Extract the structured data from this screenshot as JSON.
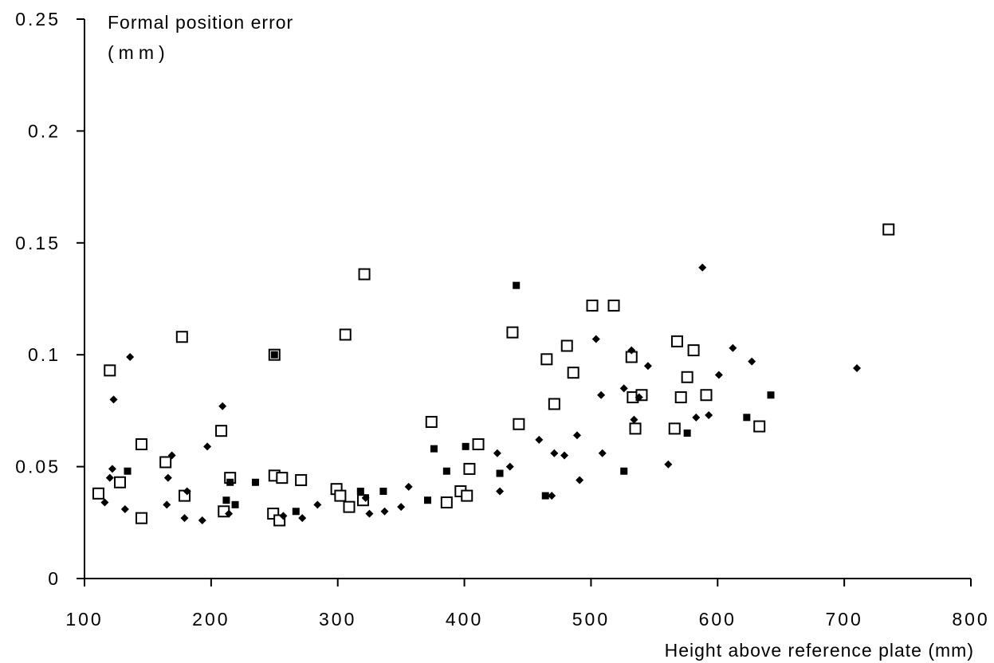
{
  "chart_data": {
    "type": "scatter",
    "title": "",
    "xlabel": "Height above reference plate (mm)",
    "ylabel_lines": [
      "Formal position error",
      "(mm)"
    ],
    "xlim": [
      100,
      800
    ],
    "ylim": [
      0,
      0.25
    ],
    "x_ticks": [
      100,
      200,
      300,
      400,
      500,
      600,
      700,
      800
    ],
    "x_tick_labels": [
      "100",
      "200",
      "300",
      "400",
      "500",
      "600",
      "700",
      "800"
    ],
    "y_ticks": [
      0,
      0.05,
      0.1,
      0.15,
      0.2,
      0.25
    ],
    "y_tick_labels": [
      "0",
      "0.05",
      "0.1",
      "0.15",
      "0.2",
      "0.25"
    ],
    "grid": false,
    "legend": "none",
    "colors": {
      "marker": "#000000",
      "background": "#ffffff"
    },
    "series": [
      {
        "marker": "open-square",
        "points": [
          [
            111,
            0.038
          ],
          [
            120,
            0.093
          ],
          [
            128,
            0.043
          ],
          [
            145,
            0.027
          ],
          [
            145,
            0.06
          ],
          [
            164,
            0.052
          ],
          [
            177,
            0.108
          ],
          [
            179,
            0.037
          ],
          [
            208,
            0.066
          ],
          [
            210,
            0.03
          ],
          [
            215,
            0.045
          ],
          [
            249,
            0.029
          ],
          [
            250,
            0.1
          ],
          [
            250,
            0.046
          ],
          [
            254,
            0.026
          ],
          [
            256,
            0.045
          ],
          [
            271,
            0.044
          ],
          [
            299,
            0.04
          ],
          [
            302,
            0.037
          ],
          [
            306,
            0.109
          ],
          [
            309,
            0.032
          ],
          [
            320,
            0.035
          ],
          [
            321,
            0.136
          ],
          [
            374,
            0.07
          ],
          [
            386,
            0.034
          ],
          [
            397,
            0.039
          ],
          [
            402,
            0.037
          ],
          [
            404,
            0.049
          ],
          [
            411,
            0.06
          ],
          [
            438,
            0.11
          ],
          [
            443,
            0.069
          ],
          [
            465,
            0.098
          ],
          [
            471,
            0.078
          ],
          [
            481,
            0.104
          ],
          [
            486,
            0.092
          ],
          [
            501,
            0.122
          ],
          [
            518,
            0.122
          ],
          [
            532,
            0.099
          ],
          [
            533,
            0.081
          ],
          [
            535,
            0.067
          ],
          [
            540,
            0.082
          ],
          [
            566,
            0.067
          ],
          [
            568,
            0.106
          ],
          [
            571,
            0.081
          ],
          [
            576,
            0.09
          ],
          [
            581,
            0.102
          ],
          [
            591,
            0.082
          ],
          [
            633,
            0.068
          ],
          [
            735,
            0.156
          ]
        ]
      },
      {
        "marker": "filled-square",
        "points": [
          [
            134,
            0.048
          ],
          [
            212,
            0.035
          ],
          [
            215,
            0.043
          ],
          [
            219,
            0.033
          ],
          [
            235,
            0.043
          ],
          [
            250,
            0.1
          ],
          [
            267,
            0.03
          ],
          [
            318,
            0.039
          ],
          [
            336,
            0.039
          ],
          [
            371,
            0.035
          ],
          [
            376,
            0.058
          ],
          [
            386,
            0.048
          ],
          [
            401,
            0.059
          ],
          [
            428,
            0.047
          ],
          [
            441,
            0.131
          ],
          [
            464,
            0.037
          ],
          [
            526,
            0.048
          ],
          [
            576,
            0.065
          ],
          [
            623,
            0.072
          ],
          [
            642,
            0.082
          ]
        ]
      },
      {
        "marker": "filled-diamond",
        "points": [
          [
            116,
            0.034
          ],
          [
            120,
            0.045
          ],
          [
            122,
            0.049
          ],
          [
            123,
            0.08
          ],
          [
            132,
            0.031
          ],
          [
            136,
            0.099
          ],
          [
            165,
            0.033
          ],
          [
            166,
            0.045
          ],
          [
            169,
            0.055
          ],
          [
            179,
            0.027
          ],
          [
            181,
            0.039
          ],
          [
            193,
            0.026
          ],
          [
            197,
            0.059
          ],
          [
            209,
            0.077
          ],
          [
            214,
            0.029
          ],
          [
            257,
            0.028
          ],
          [
            272,
            0.027
          ],
          [
            284,
            0.033
          ],
          [
            322,
            0.036
          ],
          [
            325,
            0.029
          ],
          [
            337,
            0.03
          ],
          [
            350,
            0.032
          ],
          [
            356,
            0.041
          ],
          [
            426,
            0.056
          ],
          [
            428,
            0.039
          ],
          [
            436,
            0.05
          ],
          [
            459,
            0.062
          ],
          [
            469,
            0.037
          ],
          [
            471,
            0.056
          ],
          [
            479,
            0.055
          ],
          [
            489,
            0.064
          ],
          [
            491,
            0.044
          ],
          [
            504,
            0.107
          ],
          [
            508,
            0.082
          ],
          [
            509,
            0.056
          ],
          [
            526,
            0.085
          ],
          [
            532,
            0.102
          ],
          [
            534,
            0.071
          ],
          [
            538,
            0.081
          ],
          [
            545,
            0.095
          ],
          [
            561,
            0.051
          ],
          [
            583,
            0.072
          ],
          [
            588,
            0.139
          ],
          [
            593,
            0.073
          ],
          [
            601,
            0.091
          ],
          [
            612,
            0.103
          ],
          [
            627,
            0.097
          ],
          [
            710,
            0.094
          ]
        ]
      }
    ]
  }
}
